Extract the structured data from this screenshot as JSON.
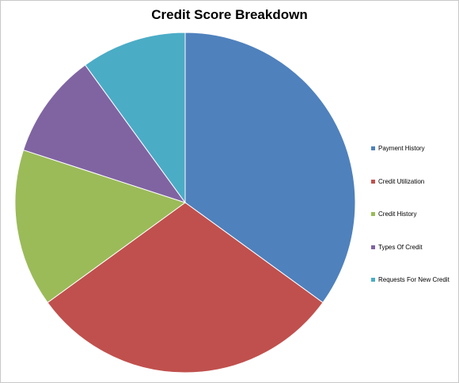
{
  "chart_data": {
    "type": "pie",
    "title": "Credit Score Breakdown",
    "categories": [
      "Payment History",
      "Credit Utilization",
      "Credit History",
      "Types Of Credit",
      "Requests For New Credit"
    ],
    "values": [
      35,
      30,
      15,
      10,
      10
    ],
    "colors": [
      "#4f81bd",
      "#c0504d",
      "#9bbb59",
      "#8064a2",
      "#4bacc6"
    ],
    "legend_position": "right",
    "start_angle": "12 o'clock",
    "direction": "clockwise"
  }
}
